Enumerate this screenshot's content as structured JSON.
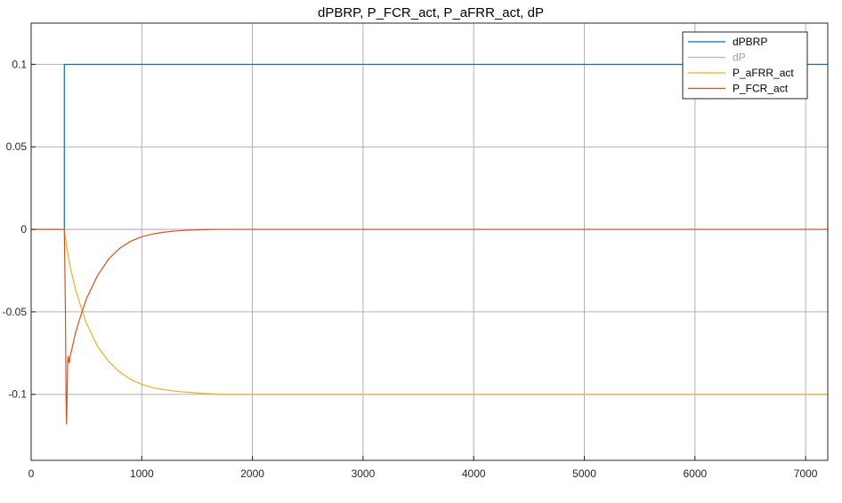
{
  "chart_data": {
    "type": "line",
    "title": "dPBRP, P_FCR_act, P_aFRR_act, dP",
    "xlabel": "",
    "ylabel": "",
    "xlim": [
      0,
      7200
    ],
    "ylim": [
      -0.14,
      0.125
    ],
    "xticks": [
      0,
      1000,
      2000,
      3000,
      4000,
      5000,
      6000,
      7000
    ],
    "xtick_labels": [
      "0",
      "1000",
      "2000",
      "3000",
      "4000",
      "5000",
      "6000",
      "7000"
    ],
    "yticks": [
      0.1,
      0.05,
      0,
      -0.05,
      -0.1
    ],
    "ytick_labels": [
      "0.1",
      "0.05",
      "0",
      "-0.05",
      "-0.1"
    ],
    "grid": true,
    "legend_position": "top-right",
    "legend": [
      "dPBRP",
      "dP",
      "P_aFRR_act",
      "P_FCR_act"
    ],
    "series": [
      {
        "name": "dPBRP",
        "color": "#0072bd",
        "x": [
          0,
          300,
          300,
          7200
        ],
        "y": [
          0,
          0,
          0.1,
          0.1
        ]
      },
      {
        "name": "dP",
        "color": "#d9a0d9",
        "x": [
          0,
          7200
        ],
        "y": [
          0,
          0
        ]
      },
      {
        "name": "P_aFRR_act",
        "color": "#edb120",
        "x": [
          0,
          300,
          300,
          320,
          350,
          400,
          450,
          500,
          600,
          700,
          800,
          900,
          1000,
          1100,
          1200,
          1300,
          1400,
          1500,
          1600,
          1700,
          2000,
          3000,
          4000,
          5000,
          6000,
          7200
        ],
        "y": [
          0,
          0,
          -0.001,
          -0.01,
          -0.022,
          -0.036,
          -0.047,
          -0.057,
          -0.071,
          -0.08,
          -0.0865,
          -0.091,
          -0.094,
          -0.096,
          -0.0972,
          -0.0981,
          -0.0987,
          -0.0992,
          -0.0996,
          -0.1,
          -0.1,
          -0.1,
          -0.1,
          -0.1,
          -0.1,
          -0.1
        ]
      },
      {
        "name": "P_FCR_act",
        "color": "#d95319",
        "x": [
          0,
          300,
          300,
          310,
          315,
          320,
          325,
          330,
          335,
          340,
          345,
          350,
          370,
          400,
          450,
          500,
          600,
          700,
          800,
          900,
          1000,
          1100,
          1200,
          1300,
          1400,
          1500,
          1600,
          1700,
          2000,
          3000,
          4000,
          5000,
          6000,
          7200
        ],
        "y": [
          0,
          0,
          -0.001,
          -0.05,
          -0.1,
          -0.118,
          -0.1,
          -0.08,
          -0.077,
          -0.08,
          -0.081,
          -0.078,
          -0.072,
          -0.063,
          -0.052,
          -0.042,
          -0.028,
          -0.018,
          -0.0115,
          -0.0072,
          -0.0045,
          -0.0028,
          -0.0017,
          -0.001,
          -0.0006,
          -0.0003,
          -0.0001,
          0,
          0,
          0,
          0,
          0,
          0,
          0
        ]
      }
    ]
  }
}
